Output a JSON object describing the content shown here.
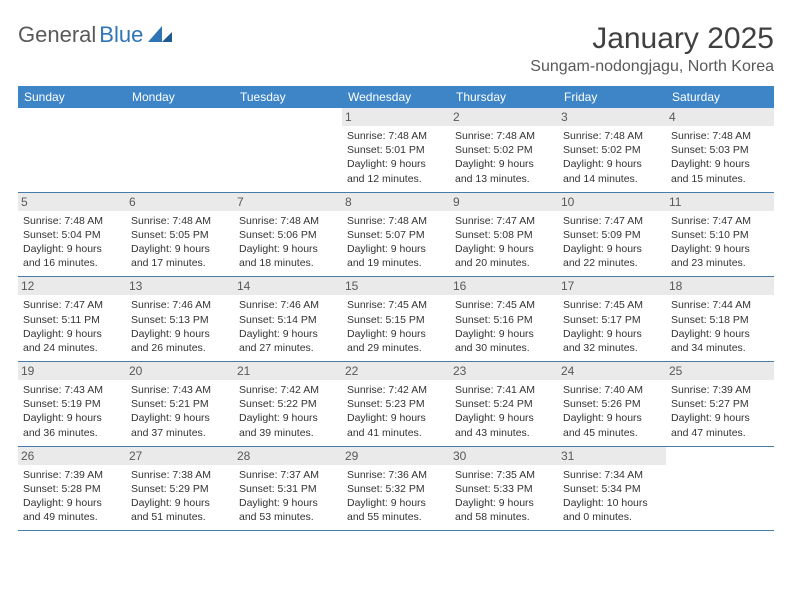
{
  "logo": {
    "text1": "General",
    "text2": "Blue"
  },
  "title": "January 2025",
  "location": "Sungam-nodongjagu, North Korea",
  "colors": {
    "header_bg": "#3d85c6",
    "header_fg": "#ffffff",
    "daynum_bg": "#eaeaea",
    "daynum_fg": "#595959",
    "border": "#4a7ba8",
    "title_fg": "#404040",
    "location_fg": "#595959",
    "logo_blue": "#2f75b5"
  },
  "day_names": [
    "Sunday",
    "Monday",
    "Tuesday",
    "Wednesday",
    "Thursday",
    "Friday",
    "Saturday"
  ],
  "weeks": [
    [
      {
        "day": "",
        "sunrise": "",
        "sunset": "",
        "daylight": ""
      },
      {
        "day": "",
        "sunrise": "",
        "sunset": "",
        "daylight": ""
      },
      {
        "day": "",
        "sunrise": "",
        "sunset": "",
        "daylight": ""
      },
      {
        "day": "1",
        "sunrise": "Sunrise: 7:48 AM",
        "sunset": "Sunset: 5:01 PM",
        "daylight": "Daylight: 9 hours and 12 minutes."
      },
      {
        "day": "2",
        "sunrise": "Sunrise: 7:48 AM",
        "sunset": "Sunset: 5:02 PM",
        "daylight": "Daylight: 9 hours and 13 minutes."
      },
      {
        "day": "3",
        "sunrise": "Sunrise: 7:48 AM",
        "sunset": "Sunset: 5:02 PM",
        "daylight": "Daylight: 9 hours and 14 minutes."
      },
      {
        "day": "4",
        "sunrise": "Sunrise: 7:48 AM",
        "sunset": "Sunset: 5:03 PM",
        "daylight": "Daylight: 9 hours and 15 minutes."
      }
    ],
    [
      {
        "day": "5",
        "sunrise": "Sunrise: 7:48 AM",
        "sunset": "Sunset: 5:04 PM",
        "daylight": "Daylight: 9 hours and 16 minutes."
      },
      {
        "day": "6",
        "sunrise": "Sunrise: 7:48 AM",
        "sunset": "Sunset: 5:05 PM",
        "daylight": "Daylight: 9 hours and 17 minutes."
      },
      {
        "day": "7",
        "sunrise": "Sunrise: 7:48 AM",
        "sunset": "Sunset: 5:06 PM",
        "daylight": "Daylight: 9 hours and 18 minutes."
      },
      {
        "day": "8",
        "sunrise": "Sunrise: 7:48 AM",
        "sunset": "Sunset: 5:07 PM",
        "daylight": "Daylight: 9 hours and 19 minutes."
      },
      {
        "day": "9",
        "sunrise": "Sunrise: 7:47 AM",
        "sunset": "Sunset: 5:08 PM",
        "daylight": "Daylight: 9 hours and 20 minutes."
      },
      {
        "day": "10",
        "sunrise": "Sunrise: 7:47 AM",
        "sunset": "Sunset: 5:09 PM",
        "daylight": "Daylight: 9 hours and 22 minutes."
      },
      {
        "day": "11",
        "sunrise": "Sunrise: 7:47 AM",
        "sunset": "Sunset: 5:10 PM",
        "daylight": "Daylight: 9 hours and 23 minutes."
      }
    ],
    [
      {
        "day": "12",
        "sunrise": "Sunrise: 7:47 AM",
        "sunset": "Sunset: 5:11 PM",
        "daylight": "Daylight: 9 hours and 24 minutes."
      },
      {
        "day": "13",
        "sunrise": "Sunrise: 7:46 AM",
        "sunset": "Sunset: 5:13 PM",
        "daylight": "Daylight: 9 hours and 26 minutes."
      },
      {
        "day": "14",
        "sunrise": "Sunrise: 7:46 AM",
        "sunset": "Sunset: 5:14 PM",
        "daylight": "Daylight: 9 hours and 27 minutes."
      },
      {
        "day": "15",
        "sunrise": "Sunrise: 7:45 AM",
        "sunset": "Sunset: 5:15 PM",
        "daylight": "Daylight: 9 hours and 29 minutes."
      },
      {
        "day": "16",
        "sunrise": "Sunrise: 7:45 AM",
        "sunset": "Sunset: 5:16 PM",
        "daylight": "Daylight: 9 hours and 30 minutes."
      },
      {
        "day": "17",
        "sunrise": "Sunrise: 7:45 AM",
        "sunset": "Sunset: 5:17 PM",
        "daylight": "Daylight: 9 hours and 32 minutes."
      },
      {
        "day": "18",
        "sunrise": "Sunrise: 7:44 AM",
        "sunset": "Sunset: 5:18 PM",
        "daylight": "Daylight: 9 hours and 34 minutes."
      }
    ],
    [
      {
        "day": "19",
        "sunrise": "Sunrise: 7:43 AM",
        "sunset": "Sunset: 5:19 PM",
        "daylight": "Daylight: 9 hours and 36 minutes."
      },
      {
        "day": "20",
        "sunrise": "Sunrise: 7:43 AM",
        "sunset": "Sunset: 5:21 PM",
        "daylight": "Daylight: 9 hours and 37 minutes."
      },
      {
        "day": "21",
        "sunrise": "Sunrise: 7:42 AM",
        "sunset": "Sunset: 5:22 PM",
        "daylight": "Daylight: 9 hours and 39 minutes."
      },
      {
        "day": "22",
        "sunrise": "Sunrise: 7:42 AM",
        "sunset": "Sunset: 5:23 PM",
        "daylight": "Daylight: 9 hours and 41 minutes."
      },
      {
        "day": "23",
        "sunrise": "Sunrise: 7:41 AM",
        "sunset": "Sunset: 5:24 PM",
        "daylight": "Daylight: 9 hours and 43 minutes."
      },
      {
        "day": "24",
        "sunrise": "Sunrise: 7:40 AM",
        "sunset": "Sunset: 5:26 PM",
        "daylight": "Daylight: 9 hours and 45 minutes."
      },
      {
        "day": "25",
        "sunrise": "Sunrise: 7:39 AM",
        "sunset": "Sunset: 5:27 PM",
        "daylight": "Daylight: 9 hours and 47 minutes."
      }
    ],
    [
      {
        "day": "26",
        "sunrise": "Sunrise: 7:39 AM",
        "sunset": "Sunset: 5:28 PM",
        "daylight": "Daylight: 9 hours and 49 minutes."
      },
      {
        "day": "27",
        "sunrise": "Sunrise: 7:38 AM",
        "sunset": "Sunset: 5:29 PM",
        "daylight": "Daylight: 9 hours and 51 minutes."
      },
      {
        "day": "28",
        "sunrise": "Sunrise: 7:37 AM",
        "sunset": "Sunset: 5:31 PM",
        "daylight": "Daylight: 9 hours and 53 minutes."
      },
      {
        "day": "29",
        "sunrise": "Sunrise: 7:36 AM",
        "sunset": "Sunset: 5:32 PM",
        "daylight": "Daylight: 9 hours and 55 minutes."
      },
      {
        "day": "30",
        "sunrise": "Sunrise: 7:35 AM",
        "sunset": "Sunset: 5:33 PM",
        "daylight": "Daylight: 9 hours and 58 minutes."
      },
      {
        "day": "31",
        "sunrise": "Sunrise: 7:34 AM",
        "sunset": "Sunset: 5:34 PM",
        "daylight": "Daylight: 10 hours and 0 minutes."
      },
      {
        "day": "",
        "sunrise": "",
        "sunset": "",
        "daylight": ""
      }
    ]
  ]
}
